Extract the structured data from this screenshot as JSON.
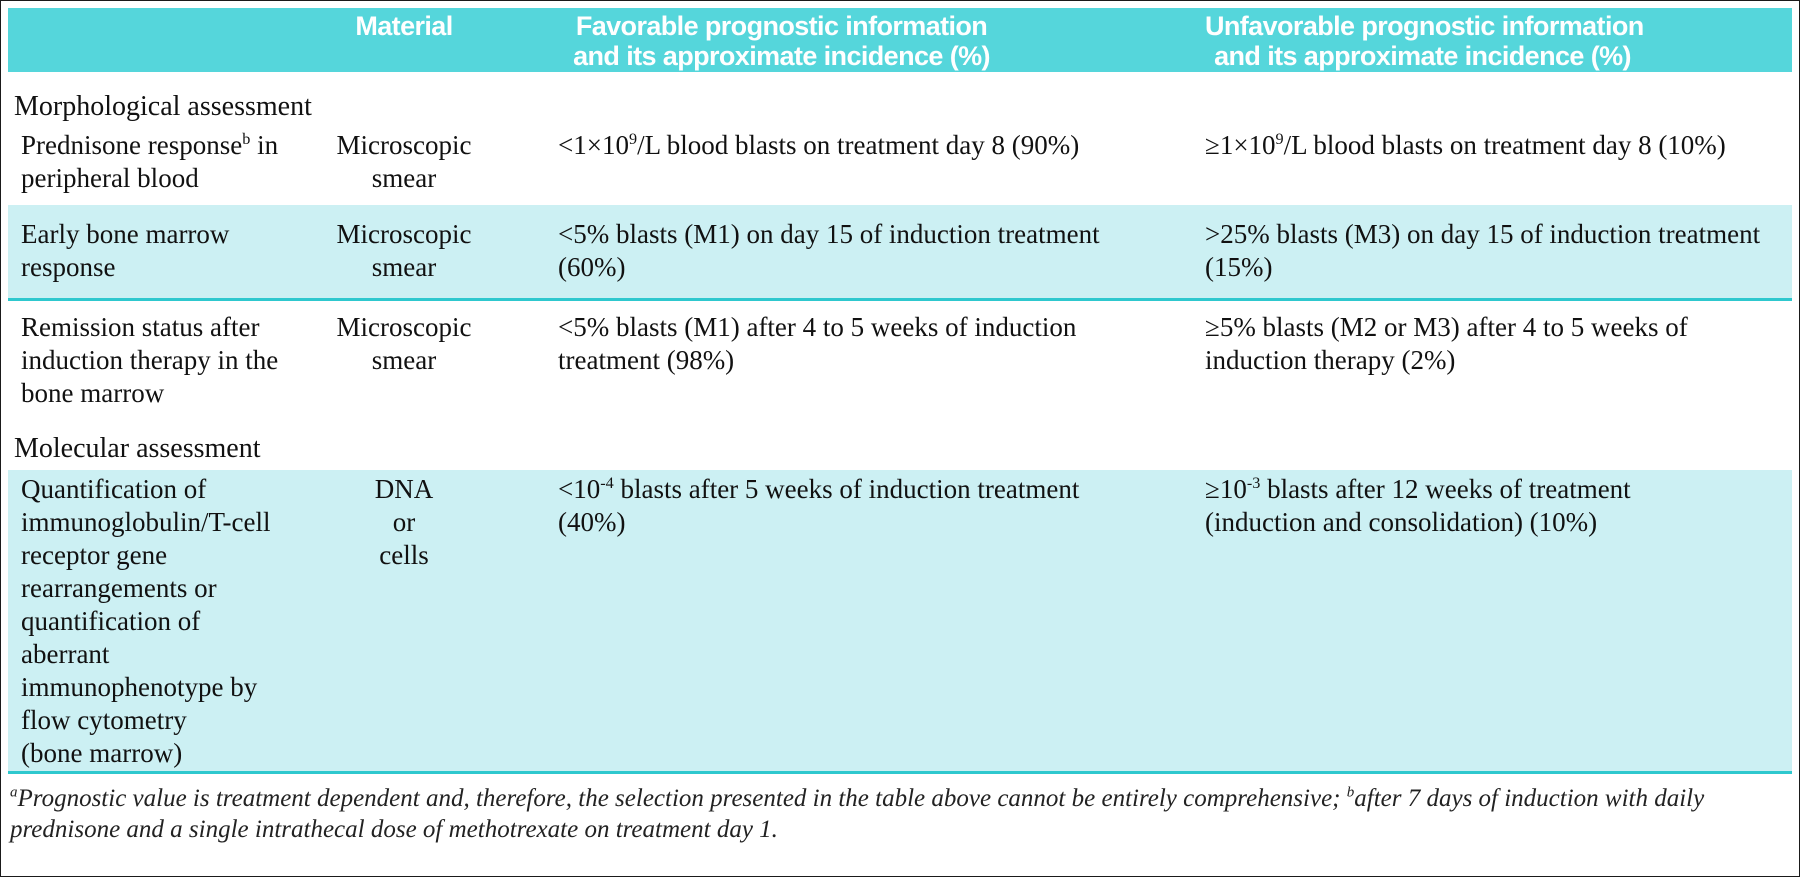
{
  "colors": {
    "header_bg": "#55d6db",
    "row_highlight_bg": "#ccf0f3",
    "separator_rule": "#2ec8ce",
    "header_text": "#ffffff",
    "body_text": "#111111"
  },
  "table": {
    "header": {
      "parameter": "",
      "material": "Material",
      "favorable": [
        [
          "Favorable prognostic information"
        ],
        [
          "and its approximate incidence (%)"
        ]
      ],
      "unfavorable": [
        [
          "Unfavorable prognostic information"
        ],
        [
          "and its approximate incidence (%)"
        ]
      ]
    },
    "section_morphological": "Morphological assessment",
    "section_molecular": "Molecular assessment",
    "rows": [
      {
        "parameter": [
          [
            "Prednisone response",
            {
              "sup": "b"
            },
            " in"
          ],
          [
            "peripheral blood"
          ]
        ],
        "material": [
          [
            "Microscopic"
          ],
          [
            "smear"
          ]
        ],
        "favorable": [
          [
            "<1×10",
            {
              "sup": "9"
            },
            "/L blood blasts on treatment day 8 (90%)"
          ]
        ],
        "unfavorable": [
          [
            "≥1×10",
            {
              "sup": "9"
            },
            "/L blood blasts on treatment day 8 (10%)"
          ]
        ]
      },
      {
        "parameter": [
          [
            "Early bone marrow"
          ],
          [
            "response"
          ]
        ],
        "material": [
          [
            "Microscopic"
          ],
          [
            "smear"
          ]
        ],
        "favorable": [
          [
            "<5% blasts (M1) on day 15 of induction treatment"
          ],
          [
            "(60%)"
          ]
        ],
        "unfavorable": [
          [
            ">25% blasts (M3) on day 15 of induction treatment"
          ],
          [
            "(15%)"
          ]
        ]
      },
      {
        "parameter": [
          [
            "Remission status after"
          ],
          [
            "induction therapy in the"
          ],
          [
            "bone marrow"
          ]
        ],
        "material": [
          [
            "Microscopic"
          ],
          [
            "smear"
          ]
        ],
        "favorable": [
          [
            "<5% blasts (M1) after 4 to 5 weeks of induction"
          ],
          [
            "treatment (98%)"
          ]
        ],
        "unfavorable": [
          [
            "≥5% blasts (M2 or M3) after 4 to 5 weeks of"
          ],
          [
            "induction therapy (2%)"
          ]
        ]
      },
      {
        "parameter": [
          [
            "Quantification of"
          ],
          [
            "immunoglobulin/T-cell"
          ],
          [
            "receptor gene"
          ],
          [
            "rearrangements or"
          ],
          [
            "quantification of"
          ],
          [
            "aberrant"
          ],
          [
            "immunophenotype by"
          ],
          [
            "flow cytometry"
          ],
          [
            "(bone marrow)"
          ]
        ],
        "material": [
          [
            "DNA"
          ],
          [
            "or"
          ],
          [
            "cells"
          ]
        ],
        "favorable": [
          [
            "<10",
            {
              "sup": "-4"
            },
            " blasts after 5 weeks of induction treatment"
          ],
          [
            "(40%)"
          ]
        ],
        "unfavorable": [
          [
            "≥10",
            {
              "sup": "-3"
            },
            " blasts after 12 weeks of treatment"
          ],
          [
            "(induction and consolidation) (10%)"
          ]
        ]
      }
    ],
    "footnote": [
      [
        {
          "sup": "a"
        },
        "Prognostic value is treatment dependent and, therefore, the selection presented in the table above cannot be entirely comprehensive; ",
        {
          "sup": "b"
        },
        "after 7 days of induction with daily prednisone and a single intrathecal dose of methotrexate on treatment day 1."
      ]
    ]
  }
}
